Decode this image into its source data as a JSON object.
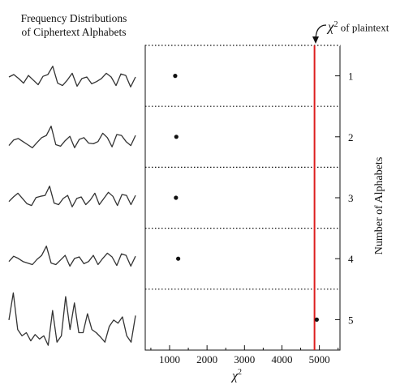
{
  "sparklines": {
    "title_line1": "Frequency Distributions",
    "title_line2": "of Ciphertext Alphabets",
    "series": [
      {
        "name": "",
        "values": [
          0.5,
          0.58,
          0.45,
          0.3,
          0.55,
          0.4,
          0.25,
          0.52,
          0.58,
          0.85,
          0.3,
          0.22,
          0.4,
          0.62,
          0.2,
          0.45,
          0.5,
          0.28,
          0.35,
          0.45,
          0.62,
          0.5,
          0.22,
          0.6,
          0.55,
          0.18,
          0.5
        ]
      },
      {
        "name": "",
        "values": [
          0.22,
          0.4,
          0.45,
          0.35,
          0.25,
          0.15,
          0.32,
          0.48,
          0.55,
          0.85,
          0.25,
          0.2,
          0.38,
          0.52,
          0.15,
          0.42,
          0.48,
          0.3,
          0.28,
          0.35,
          0.62,
          0.48,
          0.18,
          0.58,
          0.55,
          0.35,
          0.22,
          0.55
        ]
      },
      {
        "name": "",
        "values": [
          0.35,
          0.5,
          0.62,
          0.45,
          0.28,
          0.22,
          0.48,
          0.52,
          0.55,
          0.85,
          0.3,
          0.25,
          0.45,
          0.55,
          0.18,
          0.45,
          0.5,
          0.25,
          0.4,
          0.62,
          0.25,
          0.45,
          0.65,
          0.52,
          0.22,
          0.58,
          0.55,
          0.25,
          0.55
        ]
      },
      {
        "name": "",
        "values": [
          0.35,
          0.52,
          0.45,
          0.35,
          0.3,
          0.25,
          0.42,
          0.55,
          0.85,
          0.3,
          0.25,
          0.4,
          0.55,
          0.2,
          0.45,
          0.5,
          0.28,
          0.35,
          0.55,
          0.25,
          0.45,
          0.62,
          0.5,
          0.22,
          0.6,
          0.55,
          0.2,
          0.52
        ]
      },
      {
        "name": "",
        "values": [
          0.45,
          0.88,
          0.3,
          0.2,
          0.25,
          0.12,
          0.22,
          0.15,
          0.2,
          0.05,
          0.6,
          0.1,
          0.2,
          0.82,
          0.3,
          0.72,
          0.25,
          0.25,
          0.55,
          0.3,
          0.25,
          0.18,
          0.1,
          0.35,
          0.45,
          0.4,
          0.5,
          0.2,
          0.1,
          0.52
        ]
      }
    ]
  },
  "annotation": {
    "chi": "χ",
    "sup": "2",
    "text": "of plaintext"
  },
  "colors": {
    "plaintext_line": "#dd1e1e",
    "ink": "#111111"
  },
  "chart_data": {
    "type": "scatter",
    "xlabel": "χ",
    "xlabel_sup": "2",
    "ylabel": "Number of Alphabets",
    "xlim": [
      350,
      5550
    ],
    "ylim": [
      0.5,
      5.5
    ],
    "y_reversed": true,
    "x_ticks": [
      1000,
      2000,
      3000,
      4000,
      5000
    ],
    "y_ticks": [
      1,
      2,
      3,
      4,
      5
    ],
    "points": [
      {
        "x": 1150,
        "y": 1
      },
      {
        "x": 1180,
        "y": 2
      },
      {
        "x": 1170,
        "y": 3
      },
      {
        "x": 1230,
        "y": 4
      },
      {
        "x": 4930,
        "y": 5
      }
    ],
    "reference_line": {
      "x": 4870,
      "label": "χ² of plaintext"
    },
    "separators": [
      1.5,
      2.5,
      3.5,
      4.5
    ],
    "grid": false
  }
}
